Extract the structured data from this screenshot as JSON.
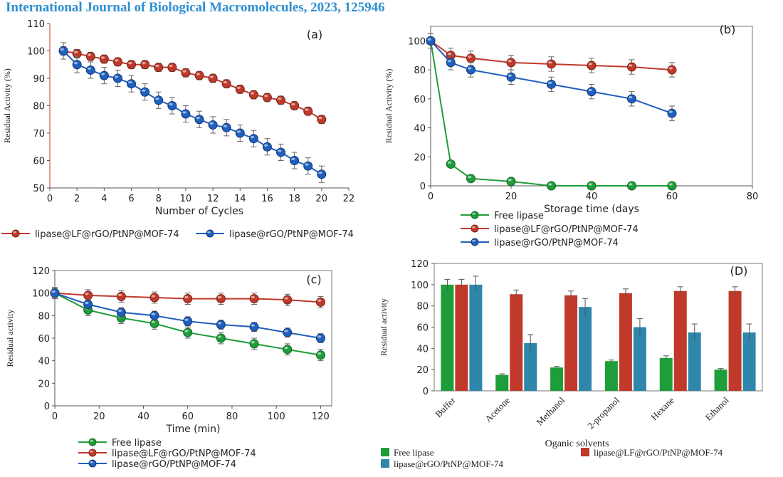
{
  "header": {
    "title": "International Journal of Biological Macromolecules, 2023, 125946"
  },
  "colors": {
    "red": "#c0392b",
    "blue": "#1f5fbf",
    "green": "#1e9e3a",
    "teal": "#2e86ab",
    "header": "#2f8fd0"
  },
  "chart_data": [
    {
      "id": "a",
      "type": "line",
      "panel_label": "(a)",
      "xlabel": "Number of Cycles",
      "ylabel": "Residual  Activity (%)",
      "xlim": [
        0,
        22
      ],
      "ylim": [
        50,
        110
      ],
      "xticks": [
        0,
        2,
        4,
        6,
        8,
        10,
        12,
        14,
        16,
        18,
        20,
        22
      ],
      "yticks": [
        50,
        60,
        70,
        80,
        90,
        100,
        110
      ],
      "legend_position": "bottom",
      "series": [
        {
          "name": "lipase@LF@rGO/PtNP@MOF-74",
          "color": "#c0392b",
          "error": 1.5,
          "x": [
            1,
            2,
            3,
            4,
            5,
            6,
            7,
            8,
            9,
            10,
            11,
            12,
            13,
            14,
            15,
            16,
            17,
            18,
            19,
            20
          ],
          "y": [
            100,
            99,
            98,
            97,
            96,
            95,
            95,
            94,
            94,
            92,
            91,
            90,
            88,
            86,
            84,
            83,
            82,
            80,
            78,
            75
          ]
        },
        {
          "name": "lipase@rGO/PtNP@MOF-74",
          "color": "#1f5fbf",
          "error": 3,
          "x": [
            1,
            2,
            3,
            4,
            5,
            6,
            7,
            8,
            9,
            10,
            11,
            12,
            13,
            14,
            15,
            16,
            17,
            18,
            19,
            20
          ],
          "y": [
            100,
            95,
            93,
            91,
            90,
            88,
            85,
            82,
            80,
            77,
            75,
            73,
            72,
            70,
            68,
            65,
            63,
            60,
            58,
            55
          ]
        }
      ]
    },
    {
      "id": "b",
      "type": "line",
      "panel_label": "(b)",
      "xlabel": "Storage time (days",
      "ylabel": "Residual  Activity (%)",
      "xlim": [
        0,
        80
      ],
      "ylim": [
        0,
        110
      ],
      "xticks": [
        0,
        20,
        40,
        60,
        80
      ],
      "yticks": [
        0,
        20,
        40,
        60,
        80,
        100
      ],
      "legend_position": "bottom",
      "series": [
        {
          "name": "Free lipase",
          "color": "#1e9e3a",
          "error": 0,
          "x": [
            0,
            5,
            10,
            20,
            30,
            40,
            50,
            60
          ],
          "y": [
            100,
            15,
            5,
            3,
            0,
            0,
            0,
            0
          ]
        },
        {
          "name": "lipase@LF@rGO/PtNP@MOF-74",
          "color": "#c0392b",
          "error": 5,
          "x": [
            0,
            5,
            10,
            20,
            30,
            40,
            50,
            60
          ],
          "y": [
            100,
            90,
            88,
            85,
            84,
            83,
            82,
            80
          ]
        },
        {
          "name": "lipase@rGO/PtNP@MOF-74",
          "color": "#1f5fbf",
          "error": 5,
          "x": [
            0,
            5,
            10,
            20,
            30,
            40,
            50,
            60
          ],
          "y": [
            100,
            85,
            80,
            75,
            70,
            65,
            60,
            50
          ]
        }
      ]
    },
    {
      "id": "c",
      "type": "line",
      "panel_label": "(c)",
      "xlabel": "Time (min)",
      "ylabel": "Residual activity",
      "xlim": [
        0,
        125
      ],
      "ylim": [
        0,
        120
      ],
      "xticks": [
        0,
        20,
        40,
        60,
        80,
        100,
        120
      ],
      "yticks": [
        0,
        20,
        40,
        60,
        80,
        100,
        120
      ],
      "legend_position": "bottom",
      "series": [
        {
          "name": "Free lipase",
          "color": "#1e9e3a",
          "error": 5,
          "x": [
            0,
            15,
            30,
            45,
            60,
            75,
            90,
            105,
            120
          ],
          "y": [
            100,
            85,
            78,
            73,
            65,
            60,
            55,
            50,
            45
          ]
        },
        {
          "name": "lipase@LF@rGO/PtNP@MOF-74",
          "color": "#c0392b",
          "error": 5,
          "x": [
            0,
            15,
            30,
            45,
            60,
            75,
            90,
            105,
            120
          ],
          "y": [
            100,
            98,
            97,
            96,
            95,
            95,
            95,
            94,
            92
          ]
        },
        {
          "name": "lipase@rGO/PtNP@MOF-74",
          "color": "#1f5fbf",
          "error": 4,
          "x": [
            0,
            15,
            30,
            45,
            60,
            75,
            90,
            105,
            120
          ],
          "y": [
            100,
            90,
            83,
            80,
            75,
            72,
            70,
            65,
            60
          ]
        }
      ]
    },
    {
      "id": "D",
      "type": "bar",
      "panel_label": "(D)",
      "xlabel": "Oganic solvents",
      "ylabel": "Residual activity",
      "ylim": [
        0,
        120
      ],
      "yticks": [
        0,
        20,
        40,
        60,
        80,
        100,
        120
      ],
      "categories": [
        "Buffer",
        "Acetone",
        "Methanol",
        "2-propanol",
        "Hexane",
        "Ethanol"
      ],
      "legend_position": "bottom",
      "series": [
        {
          "name": "Free lipase",
          "color": "#1e9e3a",
          "values": [
            100,
            15,
            22,
            28,
            31,
            20
          ],
          "errors": [
            5,
            1,
            1,
            1,
            2,
            1
          ]
        },
        {
          "name": "lipase@LF@rGO/PtNP@MOF-74",
          "color": "#c0392b",
          "values": [
            100,
            91,
            90,
            92,
            94,
            94
          ],
          "errors": [
            5,
            4,
            4,
            4,
            4,
            4
          ]
        },
        {
          "name": "lipase@rGO/PtNP@MOF-74",
          "color": "#2e86ab",
          "values": [
            100,
            45,
            79,
            60,
            55,
            55
          ],
          "errors": [
            8,
            8,
            8,
            8,
            8,
            8
          ]
        }
      ]
    }
  ]
}
